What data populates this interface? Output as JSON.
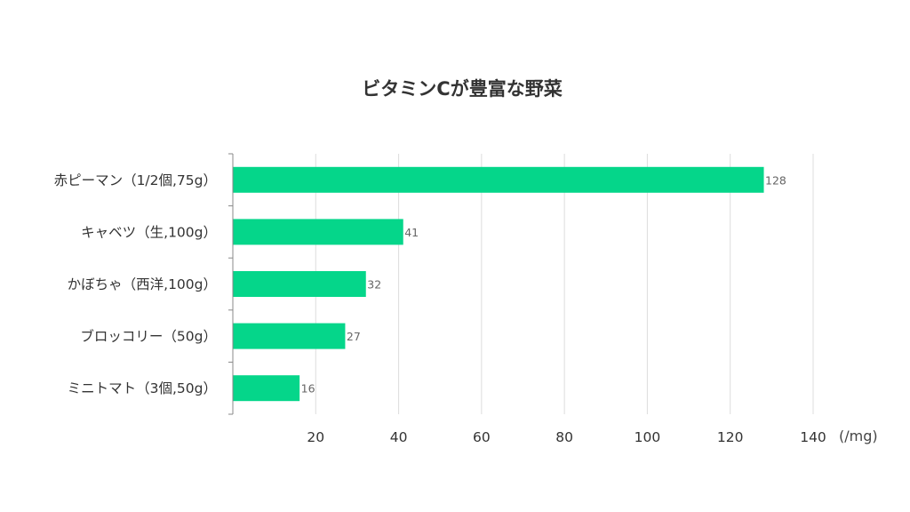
{
  "chart_data": {
    "type": "bar",
    "orientation": "horizontal",
    "title": "ビタミンCが豊富な野菜",
    "unit_label": "(/mg)",
    "categories": [
      "赤ピーマン（1/2個,75g）",
      "キャベツ（生,100g）",
      "かぼちゃ（西洋,100g）",
      "ブロッコリー（50g）",
      "ミニトマト（3個,50g）"
    ],
    "values": [
      128,
      41,
      32,
      27,
      16
    ],
    "value_labels": [
      "128",
      "41",
      "32",
      "27",
      "16"
    ],
    "xlim": [
      0,
      140
    ],
    "xticks": [
      20,
      40,
      60,
      80,
      100,
      120,
      140
    ],
    "xtick_labels": [
      "20",
      "40",
      "60",
      "80",
      "100",
      "120",
      "140"
    ],
    "grid": "vertical",
    "legend": "none",
    "bar_color": "#05d68a",
    "grid_color": "#dddddd",
    "axis_color": "#888888"
  }
}
